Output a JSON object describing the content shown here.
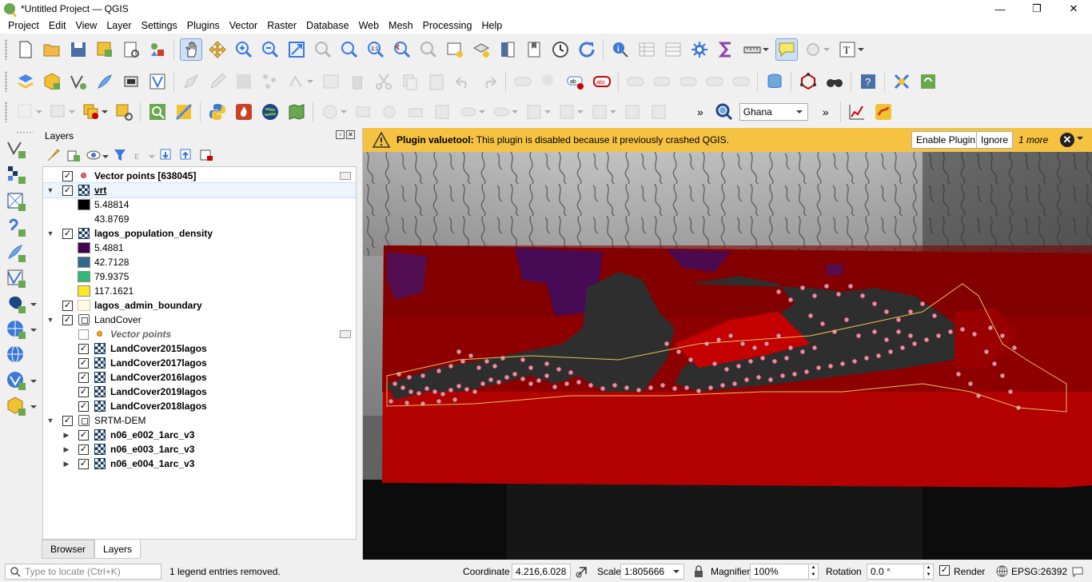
{
  "window": {
    "title": "*Untitled Project — QGIS",
    "minimize": "—",
    "maximize": "❐",
    "close": "✕"
  },
  "menu": [
    "Project",
    "Edit",
    "View",
    "Layer",
    "Settings",
    "Plugins",
    "Vector",
    "Raster",
    "Database",
    "Web",
    "Mesh",
    "Processing",
    "Help"
  ],
  "toolbar": {
    "locator_country": "Ghana",
    "overflow": "»"
  },
  "layers_panel": {
    "title": "Layers",
    "tabs": [
      "Browser",
      "Layers"
    ],
    "active_tab": "Layers",
    "items": [
      {
        "label": "Vector points [638045]",
        "checked": true,
        "type": "point",
        "color": "#e8677f"
      },
      {
        "label": "vrt",
        "checked": true,
        "type": "raster",
        "expanded": true
      },
      {
        "label": "5.48814",
        "type": "legend",
        "color": "#000000"
      },
      {
        "label": "43.8769",
        "type": "legend",
        "color": "#ffffff"
      },
      {
        "label": "lagos_population_density",
        "checked": true,
        "type": "raster",
        "expanded": true
      },
      {
        "label": "5.4881",
        "type": "legend",
        "color": "#440154"
      },
      {
        "label": "42.7128",
        "type": "legend",
        "color": "#31688e"
      },
      {
        "label": "79.9375",
        "type": "legend",
        "color": "#35b779"
      },
      {
        "label": "117.1621",
        "type": "legend",
        "color": "#fde725"
      },
      {
        "label": "lagos_admin_boundary",
        "checked": true,
        "type": "polygon",
        "color": "#fffbe6"
      },
      {
        "label": "LandCover",
        "checked": true,
        "type": "group",
        "expanded": true
      },
      {
        "label": "Vector points",
        "checked": false,
        "type": "point",
        "color": "#f5a623"
      },
      {
        "label": "LandCover2015lagos",
        "checked": true,
        "type": "raster"
      },
      {
        "label": "LandCover2017lagos",
        "checked": true,
        "type": "raster"
      },
      {
        "label": "LandCover2016lagos",
        "checked": true,
        "type": "raster"
      },
      {
        "label": "LandCover2019lagos",
        "checked": true,
        "type": "raster"
      },
      {
        "label": "LandCover2018lagos",
        "checked": true,
        "type": "raster"
      },
      {
        "label": "SRTM-DEM",
        "checked": true,
        "type": "group",
        "expanded": true
      },
      {
        "label": "n06_e002_1arc_v3",
        "checked": true,
        "type": "raster",
        "expanded": false
      },
      {
        "label": "n06_e003_1arc_v3",
        "checked": true,
        "type": "raster",
        "expanded": false
      },
      {
        "label": "n06_e004_1arc_v3",
        "checked": true,
        "type": "raster",
        "expanded": false
      }
    ]
  },
  "message_bar": {
    "plugin": "Plugin valuetool:",
    "message": "This plugin is disabled because it previously crashed QGIS.",
    "enable_button": "Enable Plugin",
    "ignore_button": "Ignore",
    "more": "1 more",
    "close": "✕",
    "color": "#f5c242"
  },
  "status_bar": {
    "locator_placeholder": "Type to locate (Ctrl+K)",
    "message": "1 legend entries removed.",
    "coordinate_label": "Coordinate",
    "coordinate_value": "4.216,6.028",
    "scale_label": "Scale",
    "scale_value": "1:805666",
    "magnifier_label": "Magnifier",
    "magnifier_value": "100%",
    "rotation_label": "Rotation",
    "rotation_value": "0.0 °",
    "render_label": "Render",
    "render_checked": true,
    "crs": "EPSG:26392"
  }
}
